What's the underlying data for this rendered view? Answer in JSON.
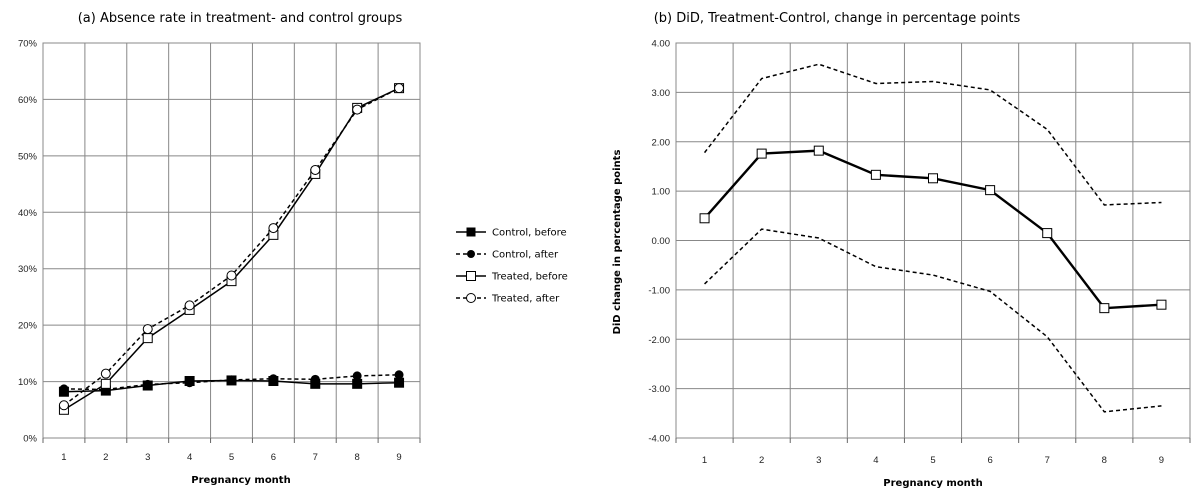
{
  "chart_data": [
    {
      "type": "line",
      "title": "(a) Absence rate in treatment- and control groups",
      "xlabel": "Pregnancy month",
      "ylabel": "",
      "ylim": [
        0,
        70
      ],
      "yticks": [
        0,
        10,
        20,
        30,
        40,
        50,
        60,
        70
      ],
      "ytick_labels": [
        "0%",
        "10%",
        "20%",
        "30%",
        "40%",
        "50%",
        "60%",
        "70%"
      ],
      "x": [
        1,
        2,
        3,
        4,
        5,
        6,
        7,
        8,
        9
      ],
      "grid": true,
      "legend_position": "right",
      "series": [
        {
          "name": "Control, before",
          "style": "solid",
          "marker": "filled-square",
          "values": [
            8.2,
            8.4,
            9.3,
            10.1,
            10.2,
            10.1,
            9.6,
            9.6,
            9.8
          ]
        },
        {
          "name": "Control, after",
          "style": "dashed",
          "marker": "filled-circle",
          "values": [
            8.7,
            8.6,
            9.5,
            9.8,
            10.3,
            10.5,
            10.4,
            11.0,
            11.2
          ]
        },
        {
          "name": "Treated, before",
          "style": "solid",
          "marker": "open-square",
          "values": [
            5.0,
            9.6,
            17.7,
            22.7,
            27.8,
            36.0,
            46.8,
            58.5,
            62.0
          ]
        },
        {
          "name": "Treated, after",
          "style": "dashed",
          "marker": "open-circle",
          "values": [
            5.8,
            11.4,
            19.3,
            23.5,
            28.8,
            37.2,
            47.5,
            58.2,
            62.0
          ]
        }
      ]
    },
    {
      "type": "line",
      "title": "(b) DiD, Treatment-Control, change in percentage points",
      "xlabel": "Pregnancy month",
      "ylabel": "DiD change in percentage points",
      "ylim": [
        -4,
        4
      ],
      "yticks": [
        -4,
        -3,
        -2,
        -1,
        0,
        1,
        2,
        3,
        4
      ],
      "ytick_labels": [
        "-4.00",
        "-3.00",
        "-2.00",
        "-1.00",
        "0.00",
        "1.00",
        "2.00",
        "3.00",
        "4.00"
      ],
      "x": [
        1,
        2,
        3,
        4,
        5,
        6,
        7,
        8,
        9
      ],
      "grid": true,
      "series": [
        {
          "style": "dashed",
          "marker": "none",
          "values": [
            1.78,
            3.28,
            3.57,
            3.18,
            3.22,
            3.05,
            2.25,
            0.72,
            0.77
          ]
        },
        {
          "style": "solid-bold",
          "marker": "open-square",
          "values": [
            0.45,
            1.76,
            1.82,
            1.33,
            1.26,
            1.02,
            0.15,
            -1.37,
            -1.3
          ]
        },
        {
          "style": "dashed",
          "marker": "none",
          "values": [
            -0.88,
            0.23,
            0.05,
            -0.53,
            -0.7,
            -1.03,
            -1.95,
            -3.47,
            -3.35
          ]
        }
      ]
    }
  ]
}
